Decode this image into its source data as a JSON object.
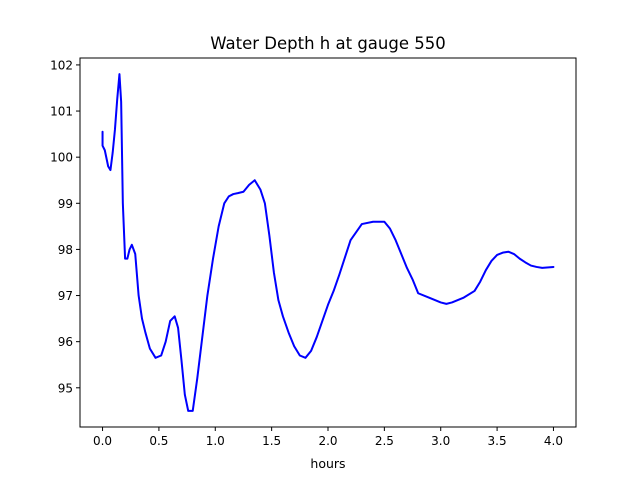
{
  "chart_data": {
    "type": "line",
    "title": "Water Depth h at gauge 550",
    "xlabel": "hours",
    "ylabel": "",
    "xlim": [
      -0.2,
      4.2
    ],
    "ylim": [
      94.15,
      102.15
    ],
    "grid": false,
    "legend": "none",
    "xticks": [
      {
        "value": 0.0,
        "label": "0.0"
      },
      {
        "value": 0.5,
        "label": "0.5"
      },
      {
        "value": 1.0,
        "label": "1.0"
      },
      {
        "value": 1.5,
        "label": "1.5"
      },
      {
        "value": 2.0,
        "label": "2.0"
      },
      {
        "value": 2.5,
        "label": "2.5"
      },
      {
        "value": 3.0,
        "label": "3.0"
      },
      {
        "value": 3.5,
        "label": "3.5"
      },
      {
        "value": 4.0,
        "label": "4.0"
      }
    ],
    "yticks": [
      {
        "value": 95,
        "label": "95"
      },
      {
        "value": 96,
        "label": "96"
      },
      {
        "value": 97,
        "label": "97"
      },
      {
        "value": 98,
        "label": "98"
      },
      {
        "value": 99,
        "label": "99"
      },
      {
        "value": 100,
        "label": "100"
      },
      {
        "value": 101,
        "label": "101"
      },
      {
        "value": 102,
        "label": "102"
      }
    ],
    "series": [
      {
        "color": "#0000ff",
        "x": [
          0.0,
          0.0,
          0.0,
          0.02,
          0.05,
          0.07,
          0.09,
          0.11,
          0.13,
          0.15,
          0.165,
          0.18,
          0.2,
          0.22,
          0.24,
          0.26,
          0.29,
          0.32,
          0.35,
          0.38,
          0.42,
          0.47,
          0.52,
          0.56,
          0.6,
          0.64,
          0.67,
          0.7,
          0.73,
          0.76,
          0.8,
          0.84,
          0.88,
          0.93,
          0.98,
          1.03,
          1.08,
          1.12,
          1.16,
          1.2,
          1.25,
          1.3,
          1.35,
          1.4,
          1.44,
          1.48,
          1.52,
          1.56,
          1.6,
          1.65,
          1.7,
          1.75,
          1.8,
          1.85,
          1.9,
          1.95,
          2.0,
          2.05,
          2.1,
          2.2,
          2.3,
          2.4,
          2.5,
          2.55,
          2.6,
          2.65,
          2.7,
          2.75,
          2.8,
          2.9,
          3.0,
          3.05,
          3.1,
          3.2,
          3.3,
          3.35,
          3.4,
          3.45,
          3.5,
          3.55,
          3.6,
          3.65,
          3.7,
          3.75,
          3.8,
          3.85,
          3.9,
          4.0
        ],
        "values": [
          100.55,
          100.4,
          100.25,
          100.15,
          99.8,
          99.72,
          100.1,
          100.6,
          101.25,
          101.8,
          101.2,
          99.0,
          97.8,
          97.8,
          98.0,
          98.1,
          97.9,
          97.0,
          96.5,
          96.2,
          95.85,
          95.65,
          95.7,
          96.0,
          96.45,
          96.55,
          96.3,
          95.6,
          94.85,
          94.5,
          94.5,
          95.2,
          96.0,
          97.0,
          97.8,
          98.5,
          99.0,
          99.15,
          99.2,
          99.22,
          99.25,
          99.4,
          99.5,
          99.3,
          99.0,
          98.3,
          97.5,
          96.9,
          96.55,
          96.2,
          95.9,
          95.7,
          95.65,
          95.8,
          96.1,
          96.45,
          96.8,
          97.1,
          97.45,
          98.2,
          98.55,
          98.6,
          98.6,
          98.45,
          98.2,
          97.9,
          97.6,
          97.35,
          97.05,
          96.95,
          96.85,
          96.82,
          96.85,
          96.95,
          97.1,
          97.3,
          97.55,
          97.75,
          97.88,
          97.93,
          97.95,
          97.9,
          97.8,
          97.72,
          97.65,
          97.62,
          97.6,
          97.62
        ]
      }
    ]
  }
}
